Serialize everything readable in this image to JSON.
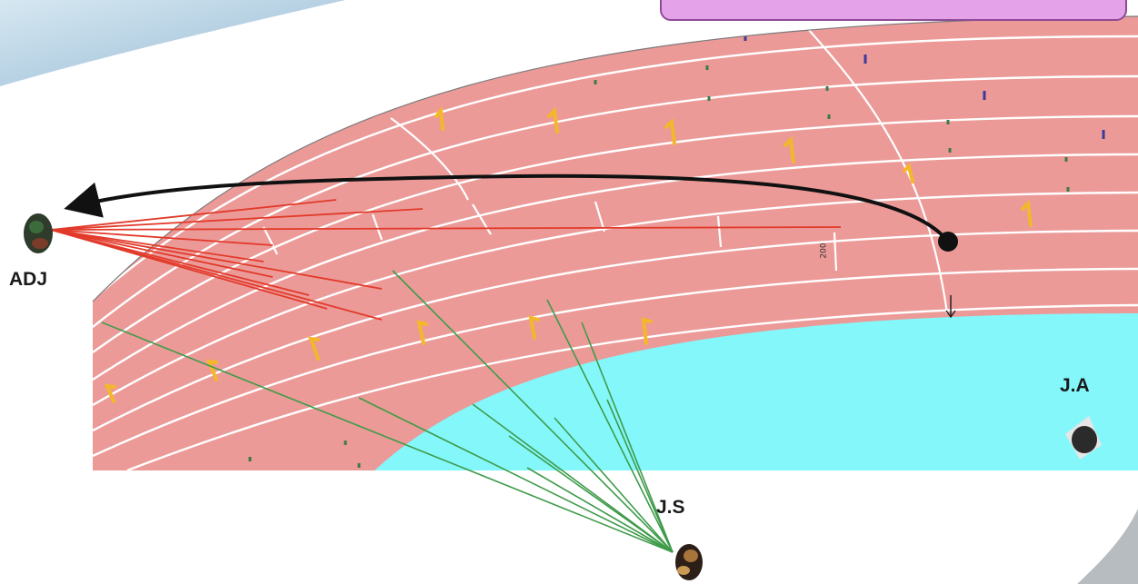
{
  "labels": {
    "adj": "ADJ",
    "js": "J.S",
    "ja": "J.A",
    "distance_mark": "200"
  },
  "colors": {
    "track": "#ec9a98",
    "lane_lines": "#ffffff",
    "infield": "#84f7fb",
    "adj_sight_lines": "#e23a2a",
    "js_sight_lines": "#3f9b4a",
    "runner_path": "#111111",
    "lane_arrows": "#f5b72a",
    "title_box": "#e4a3e9"
  },
  "icons": {
    "adj": "judge-icon",
    "js": "judge-icon",
    "ja": "judge-icon",
    "runner": "runner-position-dot-icon",
    "background": "blue-marble-texture"
  }
}
